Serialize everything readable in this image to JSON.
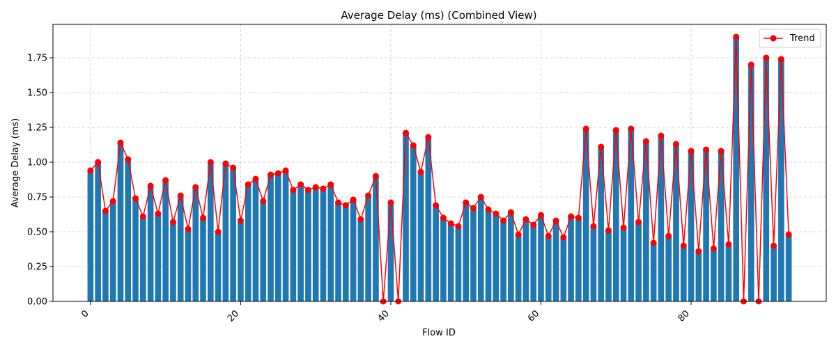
{
  "chart_data": {
    "type": "bar",
    "title": "Average Delay (ms) (Combined View)",
    "xlabel": "Flow ID",
    "ylabel": "Average Delay (ms)",
    "x": [
      0,
      1,
      2,
      3,
      4,
      5,
      6,
      7,
      8,
      9,
      10,
      11,
      12,
      13,
      14,
      15,
      16,
      17,
      18,
      19,
      20,
      21,
      22,
      23,
      24,
      25,
      26,
      27,
      28,
      29,
      30,
      31,
      32,
      33,
      34,
      35,
      36,
      37,
      38,
      39,
      40,
      41,
      42,
      43,
      44,
      45,
      46,
      47,
      48,
      49,
      50,
      51,
      52,
      53,
      54,
      55,
      56,
      57,
      58,
      59,
      60,
      61,
      62,
      63,
      64,
      65,
      66,
      67,
      68,
      69,
      70,
      71,
      72,
      73,
      74,
      75,
      76,
      77,
      78,
      79,
      80,
      81,
      82,
      83,
      84,
      85,
      86,
      87,
      88,
      89,
      90,
      91,
      92,
      93
    ],
    "values": [
      0.94,
      1.0,
      0.65,
      0.72,
      1.14,
      1.02,
      0.74,
      0.61,
      0.83,
      0.63,
      0.87,
      0.57,
      0.76,
      0.52,
      0.82,
      0.6,
      1.0,
      0.5,
      0.99,
      0.96,
      0.58,
      0.84,
      0.88,
      0.72,
      0.91,
      0.92,
      0.94,
      0.8,
      0.84,
      0.8,
      0.82,
      0.81,
      0.84,
      0.71,
      0.69,
      0.73,
      0.59,
      0.76,
      0.9,
      0.0,
      0.71,
      0.0,
      1.21,
      1.12,
      0.93,
      1.18,
      0.69,
      0.6,
      0.56,
      0.54,
      0.71,
      0.67,
      0.75,
      0.66,
      0.63,
      0.58,
      0.64,
      0.48,
      0.59,
      0.55,
      0.62,
      0.47,
      0.58,
      0.46,
      0.61,
      0.6,
      1.24,
      0.54,
      1.11,
      0.51,
      1.23,
      0.53,
      1.24,
      0.57,
      1.15,
      0.42,
      1.19,
      0.47,
      1.13,
      0.4,
      1.08,
      0.36,
      1.09,
      0.38,
      1.08,
      0.41,
      1.9,
      0.0,
      1.7,
      0.0,
      1.75,
      0.4,
      1.74,
      0.48
    ],
    "series": [
      {
        "name": "Trend",
        "type": "line",
        "color": "#ff0000",
        "marker": "circle"
      }
    ],
    "bar_color": "#1f77b4",
    "xlim": [
      -5,
      98
    ],
    "ylim": [
      0,
      1.99
    ],
    "xticks": [
      0,
      20,
      40,
      60,
      80
    ],
    "xtick_labels": [
      "0",
      "20",
      "40",
      "60",
      "80"
    ],
    "yticks": [
      0.0,
      0.25,
      0.5,
      0.75,
      1.0,
      1.25,
      1.5,
      1.75
    ],
    "ytick_labels": [
      "0.00",
      "0.25",
      "0.50",
      "0.75",
      "1.00",
      "1.25",
      "1.50",
      "1.75"
    ],
    "grid": true,
    "legend_position": "top-right"
  }
}
